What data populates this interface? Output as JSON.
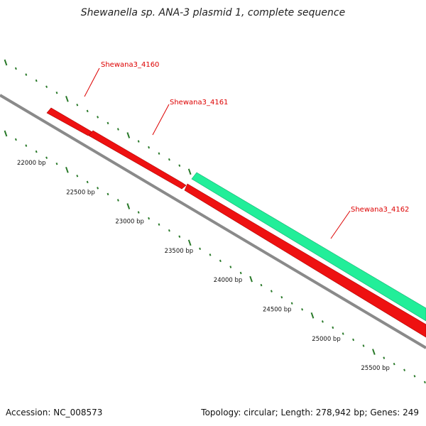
{
  "title": "Shewanella sp. ANA-3 plasmid 1, complete sequence",
  "footer": {
    "accession": "Accession: NC_008573",
    "summary": "Topology: circular; Length: 278,942 bp; Genes: 249"
  },
  "colors": {
    "backbone": "#8a8a8a",
    "reverse_gene": "#ee1111",
    "forward_gene": "#22ee99",
    "ticks": "#2a7a2a",
    "gene_label": "#dd0000"
  },
  "scale_labels": [
    "22000 bp",
    "22500 bp",
    "23000 bp",
    "23500 bp",
    "24000 bp",
    "24500 bp",
    "25000 bp",
    "25500 bp"
  ],
  "genes": [
    {
      "name": "Shewana3_4160",
      "strand": "reverse"
    },
    {
      "name": "Shewana3_4161",
      "strand": "reverse"
    },
    {
      "name": "Shewana3_4162",
      "strand": "reverse"
    },
    {
      "name": "",
      "strand": "forward"
    }
  ]
}
